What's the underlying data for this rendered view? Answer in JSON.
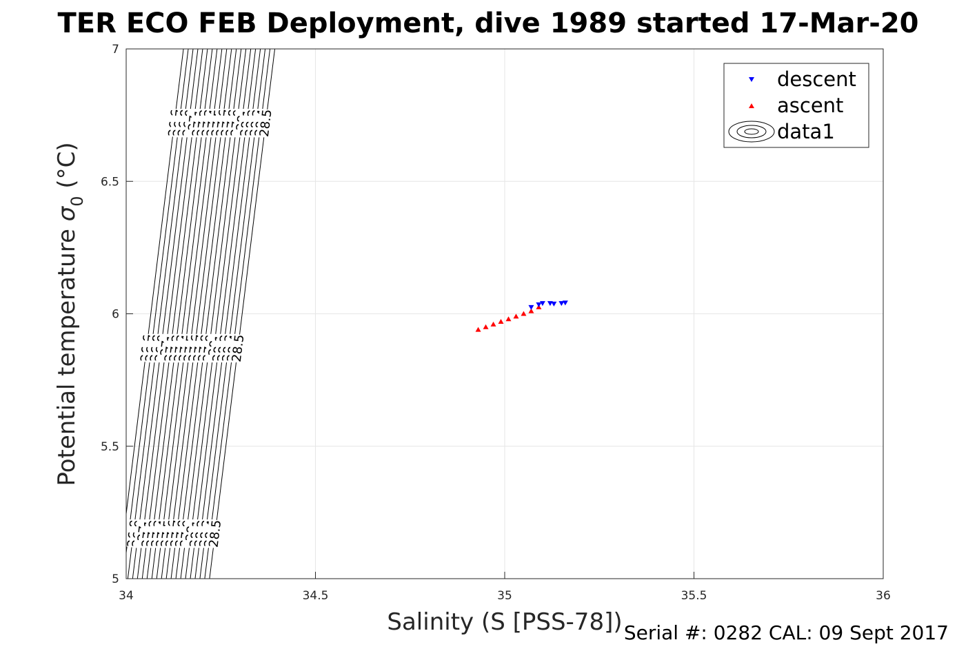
{
  "chart_data": {
    "type": "scatter",
    "title": "TER ECO FEB Deployment, dive 1989 started 17-Mar-20",
    "xlabel": "Salinity (S [PSS-78])",
    "ylabel": "Potential temperature σ₀ (°C)",
    "ylabel_main": "Potential temperature ",
    "ylabel_sigma": "σ",
    "ylabel_sub": "0",
    "ylabel_unit": " (°C)",
    "xlim": [
      34,
      36
    ],
    "ylim": [
      5,
      7
    ],
    "xticks": [
      34,
      34.5,
      35,
      35.5,
      36
    ],
    "yticks": [
      5,
      5.5,
      6,
      6.5,
      7
    ],
    "xtick_labels": [
      "34",
      "34.5",
      "35",
      "35.5",
      "36"
    ],
    "ytick_labels": [
      "5",
      "5.5",
      "6",
      "6.5",
      "7"
    ],
    "grid": true,
    "legend_position": "top-right",
    "contour_levels": [
      "26.7",
      "26.8",
      "26.9",
      "27",
      "27.1",
      "27.2",
      "27.3",
      "27.4",
      "27.5",
      "27.6",
      "27.7",
      "27.8",
      "27.9",
      "28",
      "28.1",
      "28.2",
      "28.3",
      "28.4"
    ],
    "series": [
      {
        "name": "descent",
        "marker": "triangle-down",
        "color": "#0000ff",
        "x": [
          35.07,
          35.09,
          35.1,
          35.12,
          35.13,
          35.15,
          35.16
        ],
        "y": [
          6.025,
          6.035,
          6.04,
          6.04,
          6.038,
          6.04,
          6.042
        ]
      },
      {
        "name": "ascent",
        "marker": "triangle-up",
        "color": "#ff0000",
        "x": [
          34.93,
          34.95,
          34.97,
          34.99,
          35.01,
          35.03,
          35.05,
          35.07,
          35.09
        ],
        "y": [
          5.94,
          5.95,
          5.96,
          5.97,
          5.98,
          5.99,
          6.0,
          6.01,
          6.025
        ]
      },
      {
        "name": "data1",
        "marker": "contour",
        "color": "#000000"
      }
    ]
  },
  "footer": "Serial #: 0282  CAL: 09 Sept 2017"
}
